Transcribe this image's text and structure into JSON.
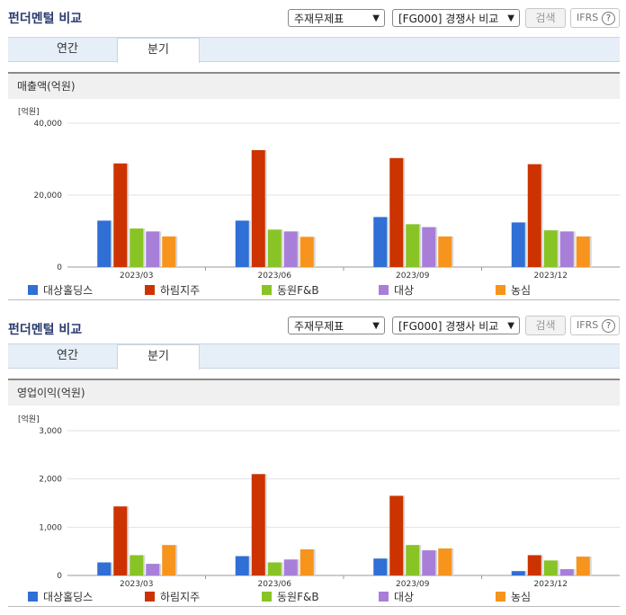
{
  "panels": [
    {
      "title": "펀더멘털 비교",
      "select1": "주재무제표",
      "select2": "[FG000] 경쟁사 비교",
      "search_label": "검색",
      "ifrs_label": "IFRS",
      "help_glyph": "?",
      "tabs": [
        {
          "label": "연간"
        },
        {
          "label": "분기"
        }
      ],
      "active_tab": 1,
      "metric_label": "매출액(억원)",
      "unit_label": "[억원]"
    },
    {
      "title": "펀더멘털 비교",
      "select1": "주재무제표",
      "select2": "[FG000] 경쟁사 비교",
      "search_label": "검색",
      "ifrs_label": "IFRS",
      "help_glyph": "?",
      "tabs": [
        {
          "label": "연간"
        },
        {
          "label": "분기"
        }
      ],
      "active_tab": 1,
      "metric_label": "영업이익(억원)",
      "unit_label": "[억원]"
    }
  ],
  "chart_data": [
    {
      "type": "bar",
      "categories": [
        "2023/03",
        "2023/06",
        "2023/09",
        "2023/12"
      ],
      "ylim": [
        0,
        40000
      ],
      "yticks": [
        0,
        20000,
        40000
      ],
      "ytick_labels": [
        "0",
        "20,000",
        "40,000"
      ],
      "grid": true,
      "legend": "bottom",
      "series": [
        {
          "name": "대상홀딩스",
          "color": "#2f6fd6",
          "values": [
            12900,
            12900,
            13900,
            12400
          ]
        },
        {
          "name": "하림지주",
          "color": "#cc3300",
          "values": [
            28800,
            32500,
            30300,
            28600
          ]
        },
        {
          "name": "동원F&B",
          "color": "#88c425",
          "values": [
            10700,
            10400,
            11900,
            10200
          ]
        },
        {
          "name": "대상",
          "color": "#a77fd9",
          "values": [
            9900,
            9900,
            11100,
            9900
          ]
        },
        {
          "name": "농심",
          "color": "#f7941d",
          "values": [
            8500,
            8400,
            8500,
            8500
          ]
        }
      ]
    },
    {
      "type": "bar",
      "categories": [
        "2023/03",
        "2023/06",
        "2023/09",
        "2023/12"
      ],
      "ylim": [
        0,
        3000
      ],
      "yticks": [
        0,
        1000,
        2000,
        3000
      ],
      "ytick_labels": [
        "0",
        "1,000",
        "2,000",
        "3,000"
      ],
      "grid": true,
      "legend": "bottom",
      "series": [
        {
          "name": "대상홀딩스",
          "color": "#2f6fd6",
          "values": [
            270,
            400,
            350,
            90
          ]
        },
        {
          "name": "하림지주",
          "color": "#cc3300",
          "values": [
            1430,
            2100,
            1650,
            420
          ]
        },
        {
          "name": "동원F&B",
          "color": "#88c425",
          "values": [
            420,
            270,
            630,
            310
          ]
        },
        {
          "name": "대상",
          "color": "#a77fd9",
          "values": [
            240,
            330,
            520,
            130
          ]
        },
        {
          "name": "농심",
          "color": "#f7941d",
          "values": [
            630,
            540,
            560,
            390
          ]
        }
      ]
    }
  ]
}
